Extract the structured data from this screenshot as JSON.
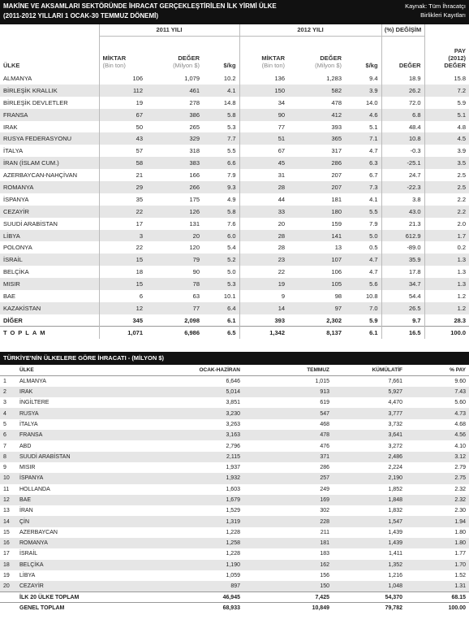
{
  "table1": {
    "title": [
      "MAKİNE VE AKSAMLARI SEKTÖRÜNDE İHRACAT GERÇEKLEŞTİRİLEN İLK YİRMİ ÜLKE",
      "(2011-2012 YILLARI 1 OCAK-30 TEMMUZ DÖNEMİ)"
    ],
    "source": [
      "Kaynak: Tüm İhracatçı",
      "Birlikleri Kayıtları"
    ],
    "group_headers": [
      "2011 YILI",
      "2012 YILI",
      "(%) DEĞİŞİM"
    ],
    "columns": [
      {
        "lines": [
          "ÜLKE"
        ]
      },
      {
        "lines": [
          "MİKTAR"
        ],
        "unit": "(Bin ton)"
      },
      {
        "lines": [
          "DEĞER"
        ],
        "unit": "(Milyon $)"
      },
      {
        "lines": [
          "$/kg"
        ]
      },
      {
        "lines": [
          "MİKTAR"
        ],
        "unit": "(Bin ton)"
      },
      {
        "lines": [
          "DEĞER"
        ],
        "unit": "(Milyon $)"
      },
      {
        "lines": [
          "$/kg"
        ]
      },
      {
        "lines": [
          "DEĞER"
        ]
      },
      {
        "lines": [
          "PAY",
          "(2012)",
          "DEĞER"
        ]
      }
    ],
    "rows": [
      [
        "ALMANYA",
        "106",
        "1,079",
        "10.2",
        "136",
        "1,283",
        "9.4",
        "18.9",
        "15.8"
      ],
      [
        "BİRLEŞİK KRALLIK",
        "112",
        "461",
        "4.1",
        "150",
        "582",
        "3.9",
        "26.2",
        "7.2"
      ],
      [
        "BİRLEŞİK DEVLETLER",
        "19",
        "278",
        "14.8",
        "34",
        "478",
        "14.0",
        "72.0",
        "5.9"
      ],
      [
        "FRANSA",
        "67",
        "386",
        "5.8",
        "90",
        "412",
        "4.6",
        "6.8",
        "5.1"
      ],
      [
        "IRAK",
        "50",
        "265",
        "5.3",
        "77",
        "393",
        "5.1",
        "48.4",
        "4.8"
      ],
      [
        "RUSYA FEDERASYONU",
        "43",
        "329",
        "7.7",
        "51",
        "365",
        "7.1",
        "10.8",
        "4.5"
      ],
      [
        "İTALYA",
        "57",
        "318",
        "5.5",
        "67",
        "317",
        "4.7",
        "-0.3",
        "3.9"
      ],
      [
        "İRAN (İSLAM CUM.)",
        "58",
        "383",
        "6.6",
        "45",
        "286",
        "6.3",
        "-25.1",
        "3.5"
      ],
      [
        "AZERBAYCAN-NAHÇİVAN",
        "21",
        "166",
        "7.9",
        "31",
        "207",
        "6.7",
        "24.7",
        "2.5"
      ],
      [
        "ROMANYA",
        "29",
        "266",
        "9.3",
        "28",
        "207",
        "7.3",
        "-22.3",
        "2.5"
      ],
      [
        "İSPANYA",
        "35",
        "175",
        "4.9",
        "44",
        "181",
        "4.1",
        "3.8",
        "2.2"
      ],
      [
        "CEZAYİR",
        "22",
        "126",
        "5.8",
        "33",
        "180",
        "5.5",
        "43.0",
        "2.2"
      ],
      [
        "SUUDİ ARABİSTAN",
        "17",
        "131",
        "7.6",
        "20",
        "159",
        "7.9",
        "21.3",
        "2.0"
      ],
      [
        "LİBYA",
        "3",
        "20",
        "6.0",
        "28",
        "141",
        "5.0",
        "612.9",
        "1.7"
      ],
      [
        "POLONYA",
        "22",
        "120",
        "5.4",
        "28",
        "13",
        "0.5",
        "-89.0",
        "0.2"
      ],
      [
        "İSRAİL",
        "15",
        "79",
        "5.2",
        "23",
        "107",
        "4.7",
        "35.9",
        "1.3"
      ],
      [
        "BELÇİKA",
        "18",
        "90",
        "5.0",
        "22",
        "106",
        "4.7",
        "17.8",
        "1.3"
      ],
      [
        "MISIR",
        "15",
        "78",
        "5.3",
        "19",
        "105",
        "5.6",
        "34.7",
        "1.3"
      ],
      [
        "BAE",
        "6",
        "63",
        "10.1",
        "9",
        "98",
        "10.8",
        "54.4",
        "1.2"
      ],
      [
        "KAZAKİSTAN",
        "12",
        "77",
        "6.4",
        "14",
        "97",
        "7.0",
        "26.5",
        "1.2"
      ],
      [
        "DİĞER",
        "345",
        "2,098",
        "6.1",
        "393",
        "2,302",
        "5.9",
        "9.7",
        "28.3"
      ],
      [
        "TOPLAM",
        "1,071",
        "6,986",
        "6.5",
        "1,342",
        "8,137",
        "6.1",
        "16.5",
        "100.0"
      ]
    ]
  },
  "table2": {
    "title": "TÜRKİYE'NİN ÜLKELERE GÖRE İHRACATI - (MİLYON $)",
    "columns": [
      "ÜLKE",
      "OCAK-HAZİRAN",
      "TEMMUZ",
      "KÜMÜLATİF",
      "% PAY"
    ],
    "rows": [
      [
        "1",
        "ALMANYA",
        "6,646",
        "1,015",
        "7,661",
        "9.60"
      ],
      [
        "2",
        "IRAK",
        "5,014",
        "913",
        "5,927",
        "7.43"
      ],
      [
        "3",
        "İNGİLTERE",
        "3,851",
        "619",
        "4,470",
        "5.60"
      ],
      [
        "4",
        "RUSYA",
        "3,230",
        "547",
        "3,777",
        "4.73"
      ],
      [
        "5",
        "İTALYA",
        "3,263",
        "468",
        "3,732",
        "4.68"
      ],
      [
        "6",
        "FRANSA",
        "3,163",
        "478",
        "3,641",
        "4.56"
      ],
      [
        "7",
        "ABD",
        "2,796",
        "476",
        "3,272",
        "4.10"
      ],
      [
        "8",
        "SUUDİ ARABİSTAN",
        "2,115",
        "371",
        "2,486",
        "3.12"
      ],
      [
        "9",
        "MISIR",
        "1,937",
        "286",
        "2,224",
        "2.79"
      ],
      [
        "10",
        "İSPANYA",
        "1,932",
        "257",
        "2,190",
        "2.75"
      ],
      [
        "11",
        "HOLLANDA",
        "1,603",
        "249",
        "1,852",
        "2.32"
      ],
      [
        "12",
        "BAE",
        "1,679",
        "169",
        "1,848",
        "2.32"
      ],
      [
        "13",
        "İRAN",
        "1,529",
        "302",
        "1,832",
        "2.30"
      ],
      [
        "14",
        "ÇİN",
        "1,319",
        "228",
        "1,547",
        "1.94"
      ],
      [
        "15",
        "AZERBAYCAN",
        "1,228",
        "211",
        "1,439",
        "1.80"
      ],
      [
        "16",
        "ROMANYA",
        "1,258",
        "181",
        "1,439",
        "1.80"
      ],
      [
        "17",
        "İSRAİL",
        "1,228",
        "183",
        "1,411",
        "1.77"
      ],
      [
        "18",
        "BELÇİKA",
        "1,190",
        "162",
        "1,352",
        "1.70"
      ],
      [
        "19",
        "LİBYA",
        "1,059",
        "156",
        "1,216",
        "1.52"
      ],
      [
        "20",
        "CEZAYİR",
        "897",
        "150",
        "1,048",
        "1.31"
      ]
    ],
    "totals": [
      [
        "İLK 20 ÜLKE TOPLAM",
        "46,945",
        "7,425",
        "54,370",
        "68.15"
      ],
      [
        "GENEL TOPLAM",
        "68,933",
        "10,849",
        "79,782",
        "100.00"
      ]
    ]
  }
}
